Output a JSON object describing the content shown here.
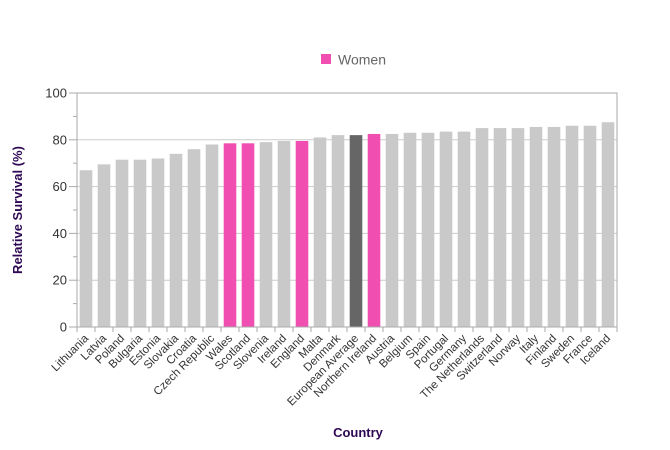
{
  "colors": {
    "default_bar": "#c9c9c9",
    "highlight_bar": "#f04eb0",
    "average_bar": "#666666",
    "grid": "#cccccc",
    "axis": "#aaaaaa",
    "axis_title": "#2e0854"
  },
  "chart_data": {
    "type": "bar",
    "title": "",
    "xlabel": "Country",
    "ylabel": "Relative Survival (%)",
    "ylim": [
      0,
      100
    ],
    "yticks": [
      0,
      20,
      40,
      60,
      80,
      100
    ],
    "grid": true,
    "legend": {
      "placement": "top-center",
      "entries": [
        {
          "name": "Women",
          "color": "#f04eb0"
        }
      ]
    },
    "categories": [
      "Lithuania",
      "Latvia",
      "Poland",
      "Bulgaria",
      "Estonia",
      "Slovakia",
      "Croatia",
      "Czech Republic",
      "Wales",
      "Scotland",
      "Slovenia",
      "Ireland",
      "England",
      "Malta",
      "Denmark",
      "European Average",
      "Northern Ireland",
      "Austria",
      "Belgium",
      "Spain",
      "Portugal",
      "Germany",
      "The Netherlands",
      "Switzerland",
      "Norway",
      "Italy",
      "Finland",
      "Sweden",
      "France",
      "Iceland"
    ],
    "values": [
      67,
      69.5,
      71.5,
      71.5,
      72,
      74,
      76,
      78,
      78.5,
      78.5,
      79,
      79.5,
      79.5,
      81,
      82,
      82,
      82.5,
      82.5,
      83,
      83,
      83.5,
      83.5,
      85,
      85,
      85,
      85.5,
      85.5,
      86,
      86,
      87.5
    ],
    "bar_kind": [
      "default",
      "default",
      "default",
      "default",
      "default",
      "default",
      "default",
      "default",
      "highlight",
      "highlight",
      "default",
      "default",
      "highlight",
      "default",
      "default",
      "average",
      "highlight",
      "default",
      "default",
      "default",
      "default",
      "default",
      "default",
      "default",
      "default",
      "default",
      "default",
      "default",
      "default",
      "default"
    ]
  }
}
